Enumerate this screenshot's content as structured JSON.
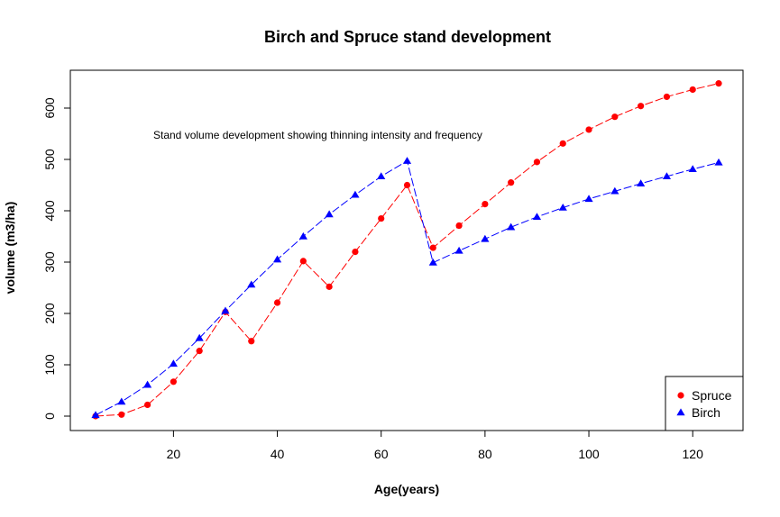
{
  "chart_data": {
    "type": "line",
    "title": "Birch and Spruce stand development",
    "xlabel": "Age(years)",
    "ylabel": "volume (m3/ha)",
    "annotation": "Stand volume development showing thinning intensity and frequency",
    "xlim": [
      5,
      125
    ],
    "ylim": [
      0,
      650
    ],
    "x_ticks": [
      20,
      40,
      60,
      80,
      100,
      120
    ],
    "y_ticks": [
      0,
      100,
      200,
      300,
      400,
      500,
      600
    ],
    "grid": false,
    "legend_position": "bottom-right",
    "series": [
      {
        "name": "Spruce",
        "color": "#ff0000",
        "marker": "circle",
        "x": [
          5,
          10,
          15,
          20,
          25,
          30,
          35,
          40,
          45,
          50,
          55,
          60,
          65,
          70,
          75,
          80,
          85,
          90,
          95,
          100,
          105,
          110,
          115,
          120,
          125
        ],
        "y": [
          0,
          3,
          22,
          67,
          127,
          203,
          146,
          221,
          302,
          252,
          320,
          385,
          450,
          328,
          371,
          413,
          455,
          495,
          531,
          558,
          583,
          604,
          622,
          636,
          648
        ]
      },
      {
        "name": "Birch",
        "color": "#0000ff",
        "marker": "triangle",
        "x": [
          5,
          10,
          15,
          20,
          25,
          30,
          35,
          40,
          45,
          50,
          55,
          60,
          65,
          70,
          75,
          80,
          85,
          90,
          95,
          100,
          105,
          110,
          115,
          120,
          125
        ],
        "y": [
          2,
          28,
          61,
          102,
          152,
          205,
          256,
          305,
          350,
          393,
          431,
          467,
          497,
          299,
          322,
          345,
          368,
          388,
          406,
          423,
          438,
          453,
          467,
          481,
          494
        ]
      }
    ]
  }
}
